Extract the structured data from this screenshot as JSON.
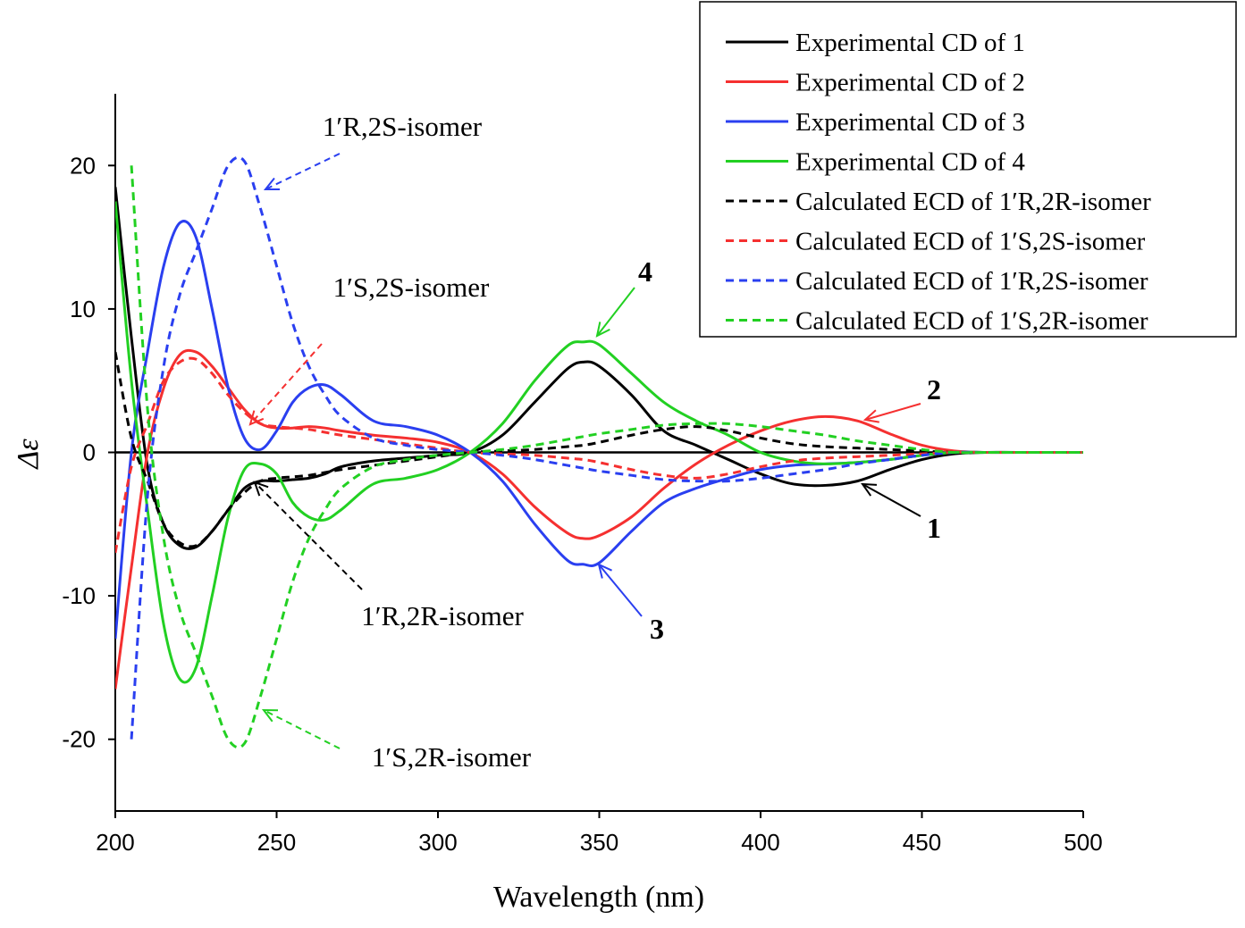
{
  "chart_data": {
    "type": "line",
    "xlabel": "Wavelength (nm)",
    "ylabel": "Δε",
    "x": [
      200,
      205,
      210,
      215,
      220,
      225,
      230,
      235,
      240,
      245,
      250,
      255,
      260,
      265,
      270,
      280,
      290,
      300,
      310,
      320,
      330,
      340,
      345,
      350,
      360,
      370,
      380,
      390,
      400,
      410,
      420,
      430,
      440,
      450,
      460,
      470,
      480,
      500
    ],
    "xlim": [
      200,
      500
    ],
    "xticks": [
      200,
      250,
      300,
      350,
      400,
      450,
      500
    ],
    "ylim": [
      -25,
      25
    ],
    "yticks": [
      -20,
      -10,
      0,
      10,
      20
    ],
    "legend": "upper right",
    "series": [
      {
        "name": "Experimental CD of 1",
        "color": "#000000",
        "linestyle": "solid",
        "values": [
          18.5,
          8,
          -1,
          -5,
          -6.5,
          -6.6,
          -5.5,
          -4,
          -2.5,
          -2,
          -2,
          -1.9,
          -1.8,
          -1.5,
          -1,
          -0.6,
          -0.4,
          -0.2,
          0,
          1.2,
          3.5,
          5.8,
          6.3,
          6,
          4,
          1.5,
          0.5,
          -0.5,
          -1.5,
          -2.2,
          -2.3,
          -2,
          -1.2,
          -0.5,
          -0.1,
          0,
          0,
          0
        ]
      },
      {
        "name": "Experimental CD of 2",
        "color": "#f53030",
        "linestyle": "solid",
        "values": [
          -16.5,
          -8,
          0,
          4.5,
          6.8,
          7,
          6,
          4.5,
          3,
          2,
          1.7,
          1.7,
          1.8,
          1.7,
          1.5,
          1.2,
          1,
          0.7,
          0,
          -1.5,
          -3.8,
          -5.6,
          -6,
          -5.8,
          -4.5,
          -2.5,
          -0.8,
          0.5,
          1.5,
          2.2,
          2.5,
          2.2,
          1.3,
          0.5,
          0.1,
          0,
          0,
          0
        ]
      },
      {
        "name": "Experimental CD of 3",
        "color": "#2a3ff0",
        "linestyle": "solid",
        "values": [
          -13,
          0,
          7,
          13,
          16,
          15,
          10,
          4.5,
          1,
          0.2,
          1.5,
          3.5,
          4.5,
          4.7,
          4,
          2.2,
          1.8,
          1.2,
          0,
          -2,
          -5,
          -7.5,
          -7.8,
          -7.7,
          -5.5,
          -3.5,
          -2.5,
          -1.8,
          -1.2,
          -0.9,
          -0.8,
          -0.7,
          -0.5,
          -0.2,
          0,
          0,
          0,
          0
        ]
      },
      {
        "name": "Experimental CD of 4",
        "color": "#22d022",
        "linestyle": "solid",
        "values": [
          17.5,
          5,
          -4,
          -12,
          -15.8,
          -15,
          -10,
          -4.5,
          -1.2,
          -0.8,
          -1.5,
          -3.5,
          -4.5,
          -4.7,
          -4,
          -2.2,
          -1.8,
          -1.2,
          0,
          2,
          5,
          7.4,
          7.7,
          7.5,
          5.5,
          3.5,
          2.2,
          1.2,
          0,
          -0.6,
          -0.8,
          -0.7,
          -0.5,
          -0.2,
          0,
          0,
          0,
          0
        ]
      },
      {
        "name": "Calculated ECD of 1′R,2R-isomer",
        "color": "#000000",
        "linestyle": "dashed",
        "values": [
          7,
          1,
          -2,
          -5,
          -6.3,
          -6.5,
          -5.5,
          -4,
          -2.8,
          -2,
          -1.8,
          -1.7,
          -1.6,
          -1.4,
          -1.2,
          -0.9,
          -0.6,
          -0.3,
          0,
          0.1,
          0.2,
          0.4,
          0.5,
          0.7,
          1.2,
          1.6,
          1.8,
          1.5,
          1,
          0.6,
          0.4,
          0.3,
          0.2,
          0.1,
          0,
          0,
          0,
          0
        ]
      },
      {
        "name": "Calculated ECD of 1′S,2S-isomer",
        "color": "#f53030",
        "linestyle": "dashed",
        "values": [
          -7,
          -1,
          2,
          5,
          6.3,
          6.5,
          5.5,
          4,
          2.8,
          2,
          1.8,
          1.7,
          1.6,
          1.4,
          1.2,
          0.9,
          0.6,
          0.3,
          0,
          -0.1,
          -0.2,
          -0.4,
          -0.5,
          -0.7,
          -1.2,
          -1.6,
          -1.8,
          -1.5,
          -1,
          -0.6,
          -0.4,
          -0.3,
          -0.2,
          -0.1,
          0,
          0,
          0,
          0
        ]
      },
      {
        "name": "Calculated ECD of 1′R,2S-isomer",
        "color": "#2a3ff0",
        "linestyle": "dashed",
        "values": [
          null,
          -20,
          -3,
          6,
          11,
          14,
          17,
          20,
          20.3,
          17,
          13,
          9,
          6,
          4,
          2.5,
          1,
          0.5,
          0.2,
          0,
          -0.2,
          -0.5,
          -0.9,
          -1.1,
          -1.3,
          -1.6,
          -1.9,
          -2,
          -2,
          -1.8,
          -1.5,
          -1.2,
          -0.8,
          -0.5,
          -0.2,
          0,
          0,
          0,
          0
        ]
      },
      {
        "name": "Calculated ECD of 1′S,2R-isomer",
        "color": "#22d022",
        "linestyle": "dashed",
        "values": [
          null,
          20,
          3,
          -6,
          -11,
          -14,
          -17,
          -20,
          -20.3,
          -17,
          -13,
          -9,
          -6,
          -4,
          -2.5,
          -1,
          -0.5,
          -0.2,
          0,
          0.2,
          0.5,
          0.9,
          1.1,
          1.3,
          1.6,
          1.9,
          2,
          2,
          1.8,
          1.5,
          1.2,
          0.8,
          0.5,
          0.2,
          0,
          0,
          0,
          0
        ]
      }
    ],
    "annotations": [
      "1′R,2S-isomer",
      "1′S,2S-isomer",
      "1′R,2R-isomer",
      "1′S,2R-isomer",
      "4",
      "2",
      "1",
      "3"
    ]
  }
}
